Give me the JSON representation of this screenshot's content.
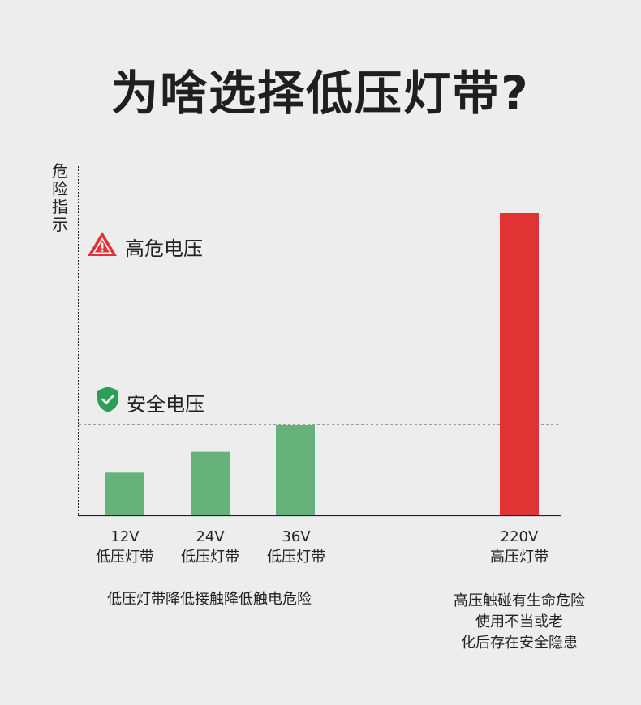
{
  "title": "为啥选择低压灯带?",
  "ylabel": "危险指示",
  "zones": {
    "danger": "高危电压",
    "safe": "安全电压"
  },
  "chart_data": {
    "type": "bar",
    "categories": [
      "12V 低压灯带",
      "24V 低压灯带",
      "36V 低压灯带",
      "220V 高压灯带"
    ],
    "category_lines": [
      [
        "12V",
        "低压灯带"
      ],
      [
        "24V",
        "低压灯带"
      ],
      [
        "36V",
        "低压灯带"
      ],
      [
        "220V",
        "高压灯带"
      ]
    ],
    "values": [
      12,
      24,
      36,
      220
    ],
    "colors": [
      "#67b27a",
      "#67b27a",
      "#67b27a",
      "#e03434"
    ],
    "ylabel": "危险指示",
    "thresholds": [
      {
        "label": "安全电压",
        "value": 36
      },
      {
        "label": "高危电压"
      }
    ]
  },
  "notes": {
    "low": "低压灯带降低接触降低触电危险",
    "high": [
      "高压触碰有生命危险",
      "使用不当或老",
      "化后存在安全隐患"
    ]
  },
  "colors": {
    "safe": "#67b27a",
    "danger": "#e03434",
    "shield": "#2e9d55"
  },
  "icons": {
    "danger": "warning-triangle-icon",
    "safe": "shield-check-icon"
  }
}
